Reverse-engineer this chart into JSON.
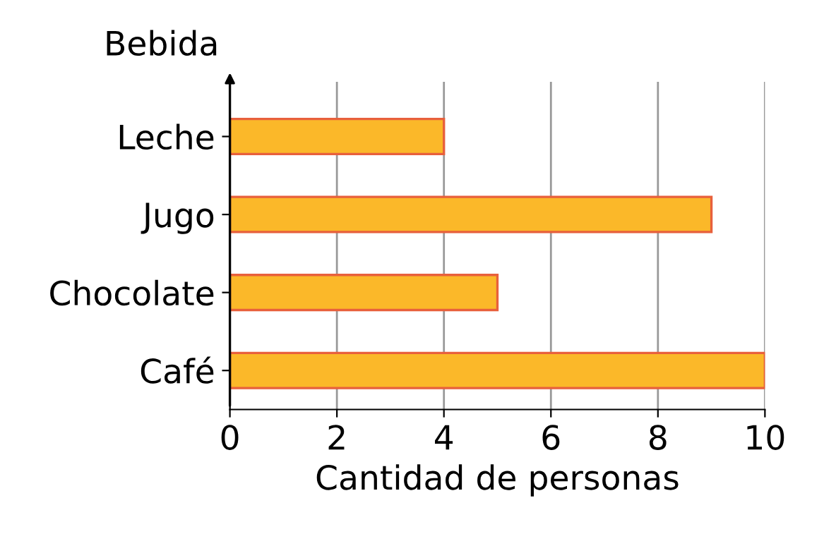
{
  "chart_data": {
    "type": "bar",
    "orientation": "horizontal",
    "categories": [
      "Leche",
      "Jugo",
      "Chocolate",
      "Café"
    ],
    "values": [
      4,
      9,
      5,
      10
    ],
    "color": "#fbb829",
    "xlabel": "Cantidad de personas",
    "ylabel": "Bebida",
    "xlim": [
      0,
      10
    ],
    "xticks": [
      0,
      2,
      4,
      6,
      8,
      10
    ],
    "grid": "x"
  }
}
